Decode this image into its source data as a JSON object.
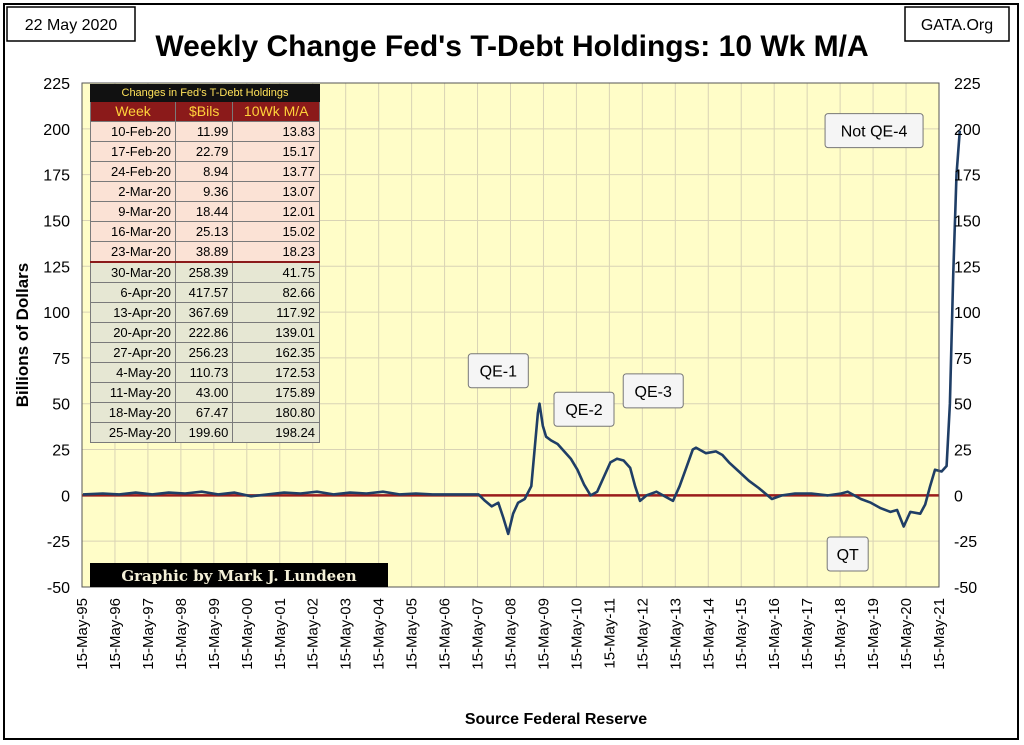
{
  "header": {
    "date": "22 May 2020",
    "title": "Weekly Change Fed's T-Debt Holdings: 10 Wk M/A",
    "source": "GATA.Org"
  },
  "credit": "Graphic by Mark J. Lundeen",
  "table": {
    "title": "Changes in Fed's T-Debt Holdings",
    "columns": [
      "Week",
      "$Bils",
      "10Wk M/A"
    ],
    "rows": [
      [
        "10-Feb-20",
        "11.99",
        "13.83"
      ],
      [
        "17-Feb-20",
        "22.79",
        "15.17"
      ],
      [
        "24-Feb-20",
        "8.94",
        "13.77"
      ],
      [
        "2-Mar-20",
        "9.36",
        "13.07"
      ],
      [
        "9-Mar-20",
        "18.44",
        "12.01"
      ],
      [
        "16-Mar-20",
        "25.13",
        "15.02"
      ],
      [
        "23-Mar-20",
        "38.89",
        "18.23"
      ],
      [
        "30-Mar-20",
        "258.39",
        "41.75"
      ],
      [
        "6-Apr-20",
        "417.57",
        "82.66"
      ],
      [
        "13-Apr-20",
        "367.69",
        "117.92"
      ],
      [
        "20-Apr-20",
        "222.86",
        "139.01"
      ],
      [
        "27-Apr-20",
        "256.23",
        "162.35"
      ],
      [
        "4-May-20",
        "110.73",
        "172.53"
      ],
      [
        "11-May-20",
        "43.00",
        "175.89"
      ],
      [
        "18-May-20",
        "67.47",
        "180.80"
      ],
      [
        "25-May-20",
        "199.60",
        "198.24"
      ]
    ]
  },
  "colors": {
    "plot_bg": "#fffdc8",
    "grid": "#d9d3b5",
    "line": "#1f3e66",
    "zero_line": "#9a1c1c"
  },
  "chart_data": {
    "type": "line",
    "xlabel": "Source Federal Reserve",
    "ylabel": "Billions of Dollars",
    "ylim": [
      -50,
      225
    ],
    "xlim": [
      1995.37,
      2021.37
    ],
    "yticks": [
      225,
      200,
      175,
      150,
      125,
      100,
      75,
      50,
      25,
      0,
      -25,
      -50
    ],
    "xtick_labels": [
      "15-May-95",
      "15-May-96",
      "15-May-97",
      "15-May-98",
      "15-May-99",
      "15-May-00",
      "15-May-01",
      "15-May-02",
      "15-May-03",
      "15-May-04",
      "15-May-05",
      "15-May-06",
      "15-May-07",
      "15-May-08",
      "15-May-09",
      "15-May-10",
      "15-May-11",
      "15-May-12",
      "15-May-13",
      "15-May-14",
      "15-May-15",
      "15-May-16",
      "15-May-17",
      "15-May-18",
      "15-May-19",
      "15-May-20",
      "15-May-21"
    ],
    "grid": true,
    "annotations": [
      {
        "text": "Not QE-4",
        "x": 2019.4,
        "y": 199
      },
      {
        "text": "QE-1",
        "x": 2008.0,
        "y": 68
      },
      {
        "text": "QE-2",
        "x": 2010.6,
        "y": 47
      },
      {
        "text": "QE-3",
        "x": 2012.7,
        "y": 57
      },
      {
        "text": "QT",
        "x": 2018.6,
        "y": -32
      }
    ],
    "series": [
      {
        "points": [
          [
            1995.4,
            0.5
          ],
          [
            1996.0,
            1.0
          ],
          [
            1996.5,
            0.5
          ],
          [
            1997.0,
            1.5
          ],
          [
            1997.5,
            0.5
          ],
          [
            1998.0,
            1.5
          ],
          [
            1998.5,
            1.0
          ],
          [
            1999.0,
            2.0
          ],
          [
            1999.5,
            0.5
          ],
          [
            2000.0,
            1.5
          ],
          [
            2000.5,
            -0.5
          ],
          [
            2001.0,
            0.5
          ],
          [
            2001.5,
            1.5
          ],
          [
            2002.0,
            1.0
          ],
          [
            2002.5,
            2.0
          ],
          [
            2003.0,
            0.5
          ],
          [
            2003.5,
            1.5
          ],
          [
            2004.0,
            1.0
          ],
          [
            2004.5,
            2.0
          ],
          [
            2005.0,
            0.5
          ],
          [
            2005.5,
            1.0
          ],
          [
            2006.0,
            0.5
          ],
          [
            2006.5,
            0.5
          ],
          [
            2007.0,
            0.5
          ],
          [
            2007.4,
            0.5
          ],
          [
            2007.6,
            -3.0
          ],
          [
            2007.8,
            -6.0
          ],
          [
            2008.0,
            -4.0
          ],
          [
            2008.15,
            -12.0
          ],
          [
            2008.3,
            -21.0
          ],
          [
            2008.45,
            -10.0
          ],
          [
            2008.6,
            -4.0
          ],
          [
            2008.8,
            -2.0
          ],
          [
            2009.0,
            5.0
          ],
          [
            2009.1,
            25.0
          ],
          [
            2009.2,
            45.0
          ],
          [
            2009.25,
            50.0
          ],
          [
            2009.35,
            38.0
          ],
          [
            2009.45,
            32.0
          ],
          [
            2009.6,
            30.0
          ],
          [
            2009.8,
            28.0
          ],
          [
            2010.0,
            24.0
          ],
          [
            2010.2,
            20.0
          ],
          [
            2010.4,
            14.0
          ],
          [
            2010.6,
            6.0
          ],
          [
            2010.8,
            0.0
          ],
          [
            2011.0,
            2.0
          ],
          [
            2011.2,
            10.0
          ],
          [
            2011.4,
            18.0
          ],
          [
            2011.6,
            20.0
          ],
          [
            2011.8,
            19.0
          ],
          [
            2012.0,
            15.0
          ],
          [
            2012.15,
            5.0
          ],
          [
            2012.3,
            -3.0
          ],
          [
            2012.5,
            0.0
          ],
          [
            2012.8,
            2.0
          ],
          [
            2013.1,
            -1.0
          ],
          [
            2013.3,
            -3.0
          ],
          [
            2013.5,
            5.0
          ],
          [
            2013.7,
            15.0
          ],
          [
            2013.9,
            25.0
          ],
          [
            2014.0,
            26.0
          ],
          [
            2014.3,
            23.0
          ],
          [
            2014.6,
            24.0
          ],
          [
            2014.8,
            22.0
          ],
          [
            2015.0,
            18.0
          ],
          [
            2015.3,
            13.0
          ],
          [
            2015.6,
            8.0
          ],
          [
            2015.9,
            4.0
          ],
          [
            2016.1,
            1.0
          ],
          [
            2016.3,
            -2.0
          ],
          [
            2016.6,
            0.0
          ],
          [
            2017.0,
            1.0
          ],
          [
            2017.5,
            1.0
          ],
          [
            2018.0,
            0.0
          ],
          [
            2018.4,
            1.0
          ],
          [
            2018.6,
            2.0
          ],
          [
            2018.8,
            0.0
          ],
          [
            2019.0,
            -2.0
          ],
          [
            2019.3,
            -4.0
          ],
          [
            2019.6,
            -7.0
          ],
          [
            2019.9,
            -9.0
          ],
          [
            2020.1,
            -8.0
          ],
          [
            2020.3,
            -17.0
          ],
          [
            2020.5,
            -9.0
          ],
          [
            2020.8,
            -10.0
          ],
          [
            2020.95,
            -5.0
          ],
          [
            2021.1,
            5.0
          ],
          [
            2021.25,
            14.0
          ],
          [
            2021.45,
            13.0
          ],
          [
            2021.6,
            16.0
          ],
          [
            2021.7,
            50.0
          ],
          [
            2021.8,
            120.0
          ],
          [
            2021.9,
            175.0
          ],
          [
            2022.0,
            199.0
          ]
        ]
      }
    ]
  }
}
